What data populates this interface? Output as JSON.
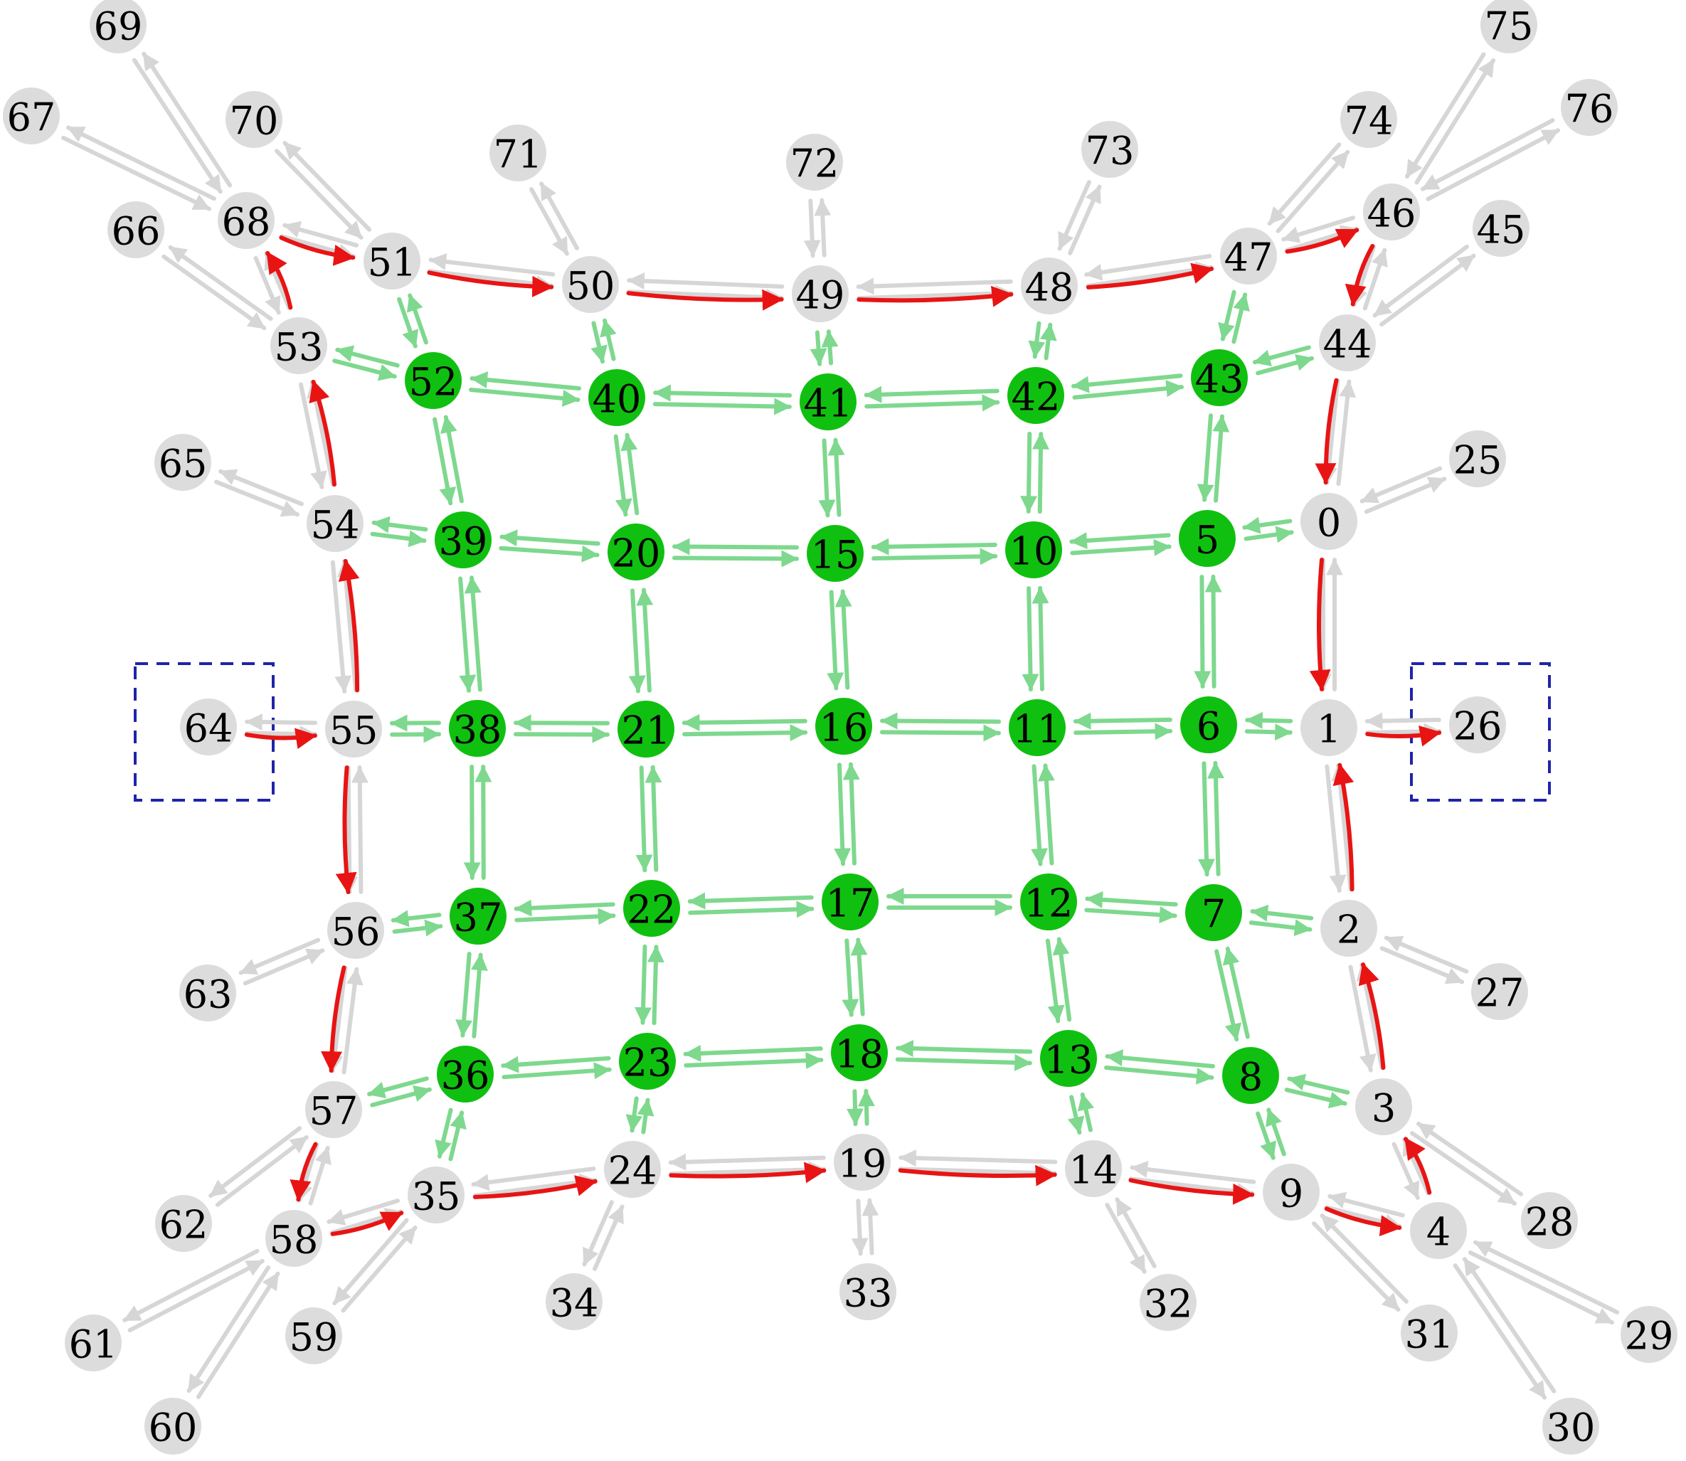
{
  "colors": {
    "green_node": "#10c010",
    "gray_node": "#dcdcdc",
    "green_edge": "#7ed88e",
    "gray_edge": "#d6d6d6",
    "red_edge": "#e81414",
    "box": "#1f24a8"
  },
  "nodes": [
    {
      "id": "0",
      "type": "gray"
    },
    {
      "id": "1",
      "type": "gray"
    },
    {
      "id": "2",
      "type": "gray"
    },
    {
      "id": "3",
      "type": "gray"
    },
    {
      "id": "4",
      "type": "gray"
    },
    {
      "id": "5",
      "type": "green"
    },
    {
      "id": "6",
      "type": "green"
    },
    {
      "id": "7",
      "type": "green"
    },
    {
      "id": "8",
      "type": "green"
    },
    {
      "id": "9",
      "type": "gray"
    },
    {
      "id": "10",
      "type": "green"
    },
    {
      "id": "11",
      "type": "green"
    },
    {
      "id": "12",
      "type": "green"
    },
    {
      "id": "13",
      "type": "green"
    },
    {
      "id": "14",
      "type": "gray"
    },
    {
      "id": "15",
      "type": "green"
    },
    {
      "id": "16",
      "type": "green"
    },
    {
      "id": "17",
      "type": "green"
    },
    {
      "id": "18",
      "type": "green"
    },
    {
      "id": "19",
      "type": "gray"
    },
    {
      "id": "20",
      "type": "green"
    },
    {
      "id": "21",
      "type": "green"
    },
    {
      "id": "22",
      "type": "green"
    },
    {
      "id": "23",
      "type": "green"
    },
    {
      "id": "24",
      "type": "gray"
    },
    {
      "id": "25",
      "type": "gray"
    },
    {
      "id": "26",
      "type": "gray"
    },
    {
      "id": "27",
      "type": "gray"
    },
    {
      "id": "28",
      "type": "gray"
    },
    {
      "id": "29",
      "type": "gray"
    },
    {
      "id": "30",
      "type": "gray"
    },
    {
      "id": "31",
      "type": "gray"
    },
    {
      "id": "32",
      "type": "gray"
    },
    {
      "id": "33",
      "type": "gray"
    },
    {
      "id": "34",
      "type": "gray"
    },
    {
      "id": "35",
      "type": "gray"
    },
    {
      "id": "36",
      "type": "green"
    },
    {
      "id": "37",
      "type": "green"
    },
    {
      "id": "38",
      "type": "green"
    },
    {
      "id": "39",
      "type": "green"
    },
    {
      "id": "40",
      "type": "green"
    },
    {
      "id": "41",
      "type": "green"
    },
    {
      "id": "42",
      "type": "green"
    },
    {
      "id": "43",
      "type": "green"
    },
    {
      "id": "44",
      "type": "gray"
    },
    {
      "id": "45",
      "type": "gray"
    },
    {
      "id": "46",
      "type": "gray"
    },
    {
      "id": "47",
      "type": "gray"
    },
    {
      "id": "48",
      "type": "gray"
    },
    {
      "id": "49",
      "type": "gray"
    },
    {
      "id": "50",
      "type": "gray"
    },
    {
      "id": "51",
      "type": "gray"
    },
    {
      "id": "52",
      "type": "green"
    },
    {
      "id": "53",
      "type": "gray"
    },
    {
      "id": "54",
      "type": "gray"
    },
    {
      "id": "55",
      "type": "gray"
    },
    {
      "id": "56",
      "type": "gray"
    },
    {
      "id": "57",
      "type": "gray"
    },
    {
      "id": "58",
      "type": "gray"
    },
    {
      "id": "59",
      "type": "gray"
    },
    {
      "id": "60",
      "type": "gray"
    },
    {
      "id": "61",
      "type": "gray"
    },
    {
      "id": "62",
      "type": "gray"
    },
    {
      "id": "63",
      "type": "gray"
    },
    {
      "id": "64",
      "type": "gray"
    },
    {
      "id": "65",
      "type": "gray"
    },
    {
      "id": "66",
      "type": "gray"
    },
    {
      "id": "67",
      "type": "gray"
    },
    {
      "id": "68",
      "type": "gray"
    },
    {
      "id": "69",
      "type": "gray"
    },
    {
      "id": "70",
      "type": "gray"
    },
    {
      "id": "71",
      "type": "gray"
    },
    {
      "id": "72",
      "type": "gray"
    },
    {
      "id": "73",
      "type": "gray"
    },
    {
      "id": "74",
      "type": "gray"
    },
    {
      "id": "75",
      "type": "gray"
    },
    {
      "id": "76",
      "type": "gray"
    }
  ],
  "green_links": [
    [
      "52",
      "40"
    ],
    [
      "40",
      "41"
    ],
    [
      "41",
      "42"
    ],
    [
      "42",
      "43"
    ],
    [
      "39",
      "20"
    ],
    [
      "20",
      "15"
    ],
    [
      "15",
      "10"
    ],
    [
      "10",
      "5"
    ],
    [
      "38",
      "21"
    ],
    [
      "21",
      "16"
    ],
    [
      "16",
      "11"
    ],
    [
      "11",
      "6"
    ],
    [
      "37",
      "22"
    ],
    [
      "22",
      "17"
    ],
    [
      "17",
      "12"
    ],
    [
      "12",
      "7"
    ],
    [
      "36",
      "23"
    ],
    [
      "23",
      "18"
    ],
    [
      "18",
      "13"
    ],
    [
      "13",
      "8"
    ],
    [
      "52",
      "39"
    ],
    [
      "39",
      "38"
    ],
    [
      "38",
      "37"
    ],
    [
      "37",
      "36"
    ],
    [
      "40",
      "20"
    ],
    [
      "20",
      "21"
    ],
    [
      "21",
      "22"
    ],
    [
      "22",
      "23"
    ],
    [
      "41",
      "15"
    ],
    [
      "15",
      "16"
    ],
    [
      "16",
      "17"
    ],
    [
      "17",
      "18"
    ],
    [
      "42",
      "10"
    ],
    [
      "10",
      "11"
    ],
    [
      "11",
      "12"
    ],
    [
      "12",
      "13"
    ],
    [
      "43",
      "5"
    ],
    [
      "5",
      "6"
    ],
    [
      "6",
      "7"
    ],
    [
      "7",
      "8"
    ],
    [
      "53",
      "52"
    ],
    [
      "51",
      "52"
    ],
    [
      "50",
      "40"
    ],
    [
      "49",
      "41"
    ],
    [
      "48",
      "42"
    ],
    [
      "47",
      "43"
    ],
    [
      "44",
      "43"
    ],
    [
      "0",
      "5"
    ],
    [
      "1",
      "6"
    ],
    [
      "2",
      "7"
    ],
    [
      "3",
      "8"
    ],
    [
      "9",
      "8"
    ],
    [
      "14",
      "13"
    ],
    [
      "19",
      "18"
    ],
    [
      "24",
      "23"
    ],
    [
      "35",
      "36"
    ],
    [
      "57",
      "36"
    ],
    [
      "56",
      "37"
    ],
    [
      "55",
      "38"
    ],
    [
      "54",
      "39"
    ]
  ],
  "gray_links": [
    [
      "51",
      "50"
    ],
    [
      "50",
      "49"
    ],
    [
      "49",
      "48"
    ],
    [
      "48",
      "47"
    ],
    [
      "47",
      "46"
    ],
    [
      "46",
      "44"
    ],
    [
      "44",
      "0"
    ],
    [
      "0",
      "1"
    ],
    [
      "1",
      "2"
    ],
    [
      "2",
      "3"
    ],
    [
      "3",
      "4"
    ],
    [
      "4",
      "9"
    ],
    [
      "9",
      "14"
    ],
    [
      "14",
      "19"
    ],
    [
      "19",
      "24"
    ],
    [
      "24",
      "35"
    ],
    [
      "35",
      "58"
    ],
    [
      "58",
      "57"
    ],
    [
      "57",
      "56"
    ],
    [
      "56",
      "55"
    ],
    [
      "55",
      "54"
    ],
    [
      "54",
      "53"
    ],
    [
      "53",
      "68"
    ],
    [
      "68",
      "51"
    ],
    [
      "0",
      "25"
    ],
    [
      "1",
      "26"
    ],
    [
      "2",
      "27"
    ],
    [
      "3",
      "28"
    ],
    [
      "4",
      "29"
    ],
    [
      "4",
      "30"
    ],
    [
      "9",
      "31"
    ],
    [
      "14",
      "32"
    ],
    [
      "19",
      "33"
    ],
    [
      "24",
      "34"
    ],
    [
      "35",
      "59"
    ],
    [
      "58",
      "60"
    ],
    [
      "58",
      "61"
    ],
    [
      "57",
      "62"
    ],
    [
      "56",
      "63"
    ],
    [
      "55",
      "64"
    ],
    [
      "54",
      "65"
    ],
    [
      "53",
      "66"
    ],
    [
      "68",
      "67"
    ],
    [
      "68",
      "69"
    ],
    [
      "51",
      "70"
    ],
    [
      "50",
      "71"
    ],
    [
      "49",
      "72"
    ],
    [
      "48",
      "73"
    ],
    [
      "47",
      "74"
    ],
    [
      "46",
      "75"
    ],
    [
      "46",
      "76"
    ],
    [
      "44",
      "45"
    ]
  ],
  "red_arrows": [
    [
      "68",
      "51"
    ],
    [
      "51",
      "50"
    ],
    [
      "50",
      "49"
    ],
    [
      "49",
      "48"
    ],
    [
      "48",
      "47"
    ],
    [
      "47",
      "46"
    ],
    [
      "46",
      "44"
    ],
    [
      "44",
      "0"
    ],
    [
      "0",
      "1"
    ],
    [
      "1",
      "26"
    ],
    [
      "2",
      "1"
    ],
    [
      "3",
      "2"
    ],
    [
      "4",
      "3"
    ],
    [
      "9",
      "4"
    ],
    [
      "14",
      "9"
    ],
    [
      "19",
      "14"
    ],
    [
      "24",
      "19"
    ],
    [
      "35",
      "24"
    ],
    [
      "58",
      "35"
    ],
    [
      "57",
      "58"
    ],
    [
      "56",
      "57"
    ],
    [
      "55",
      "56"
    ],
    [
      "64",
      "55"
    ],
    [
      "55",
      "54"
    ],
    [
      "54",
      "53"
    ],
    [
      "53",
      "68"
    ]
  ],
  "boxed_nodes": [
    "64",
    "26"
  ]
}
